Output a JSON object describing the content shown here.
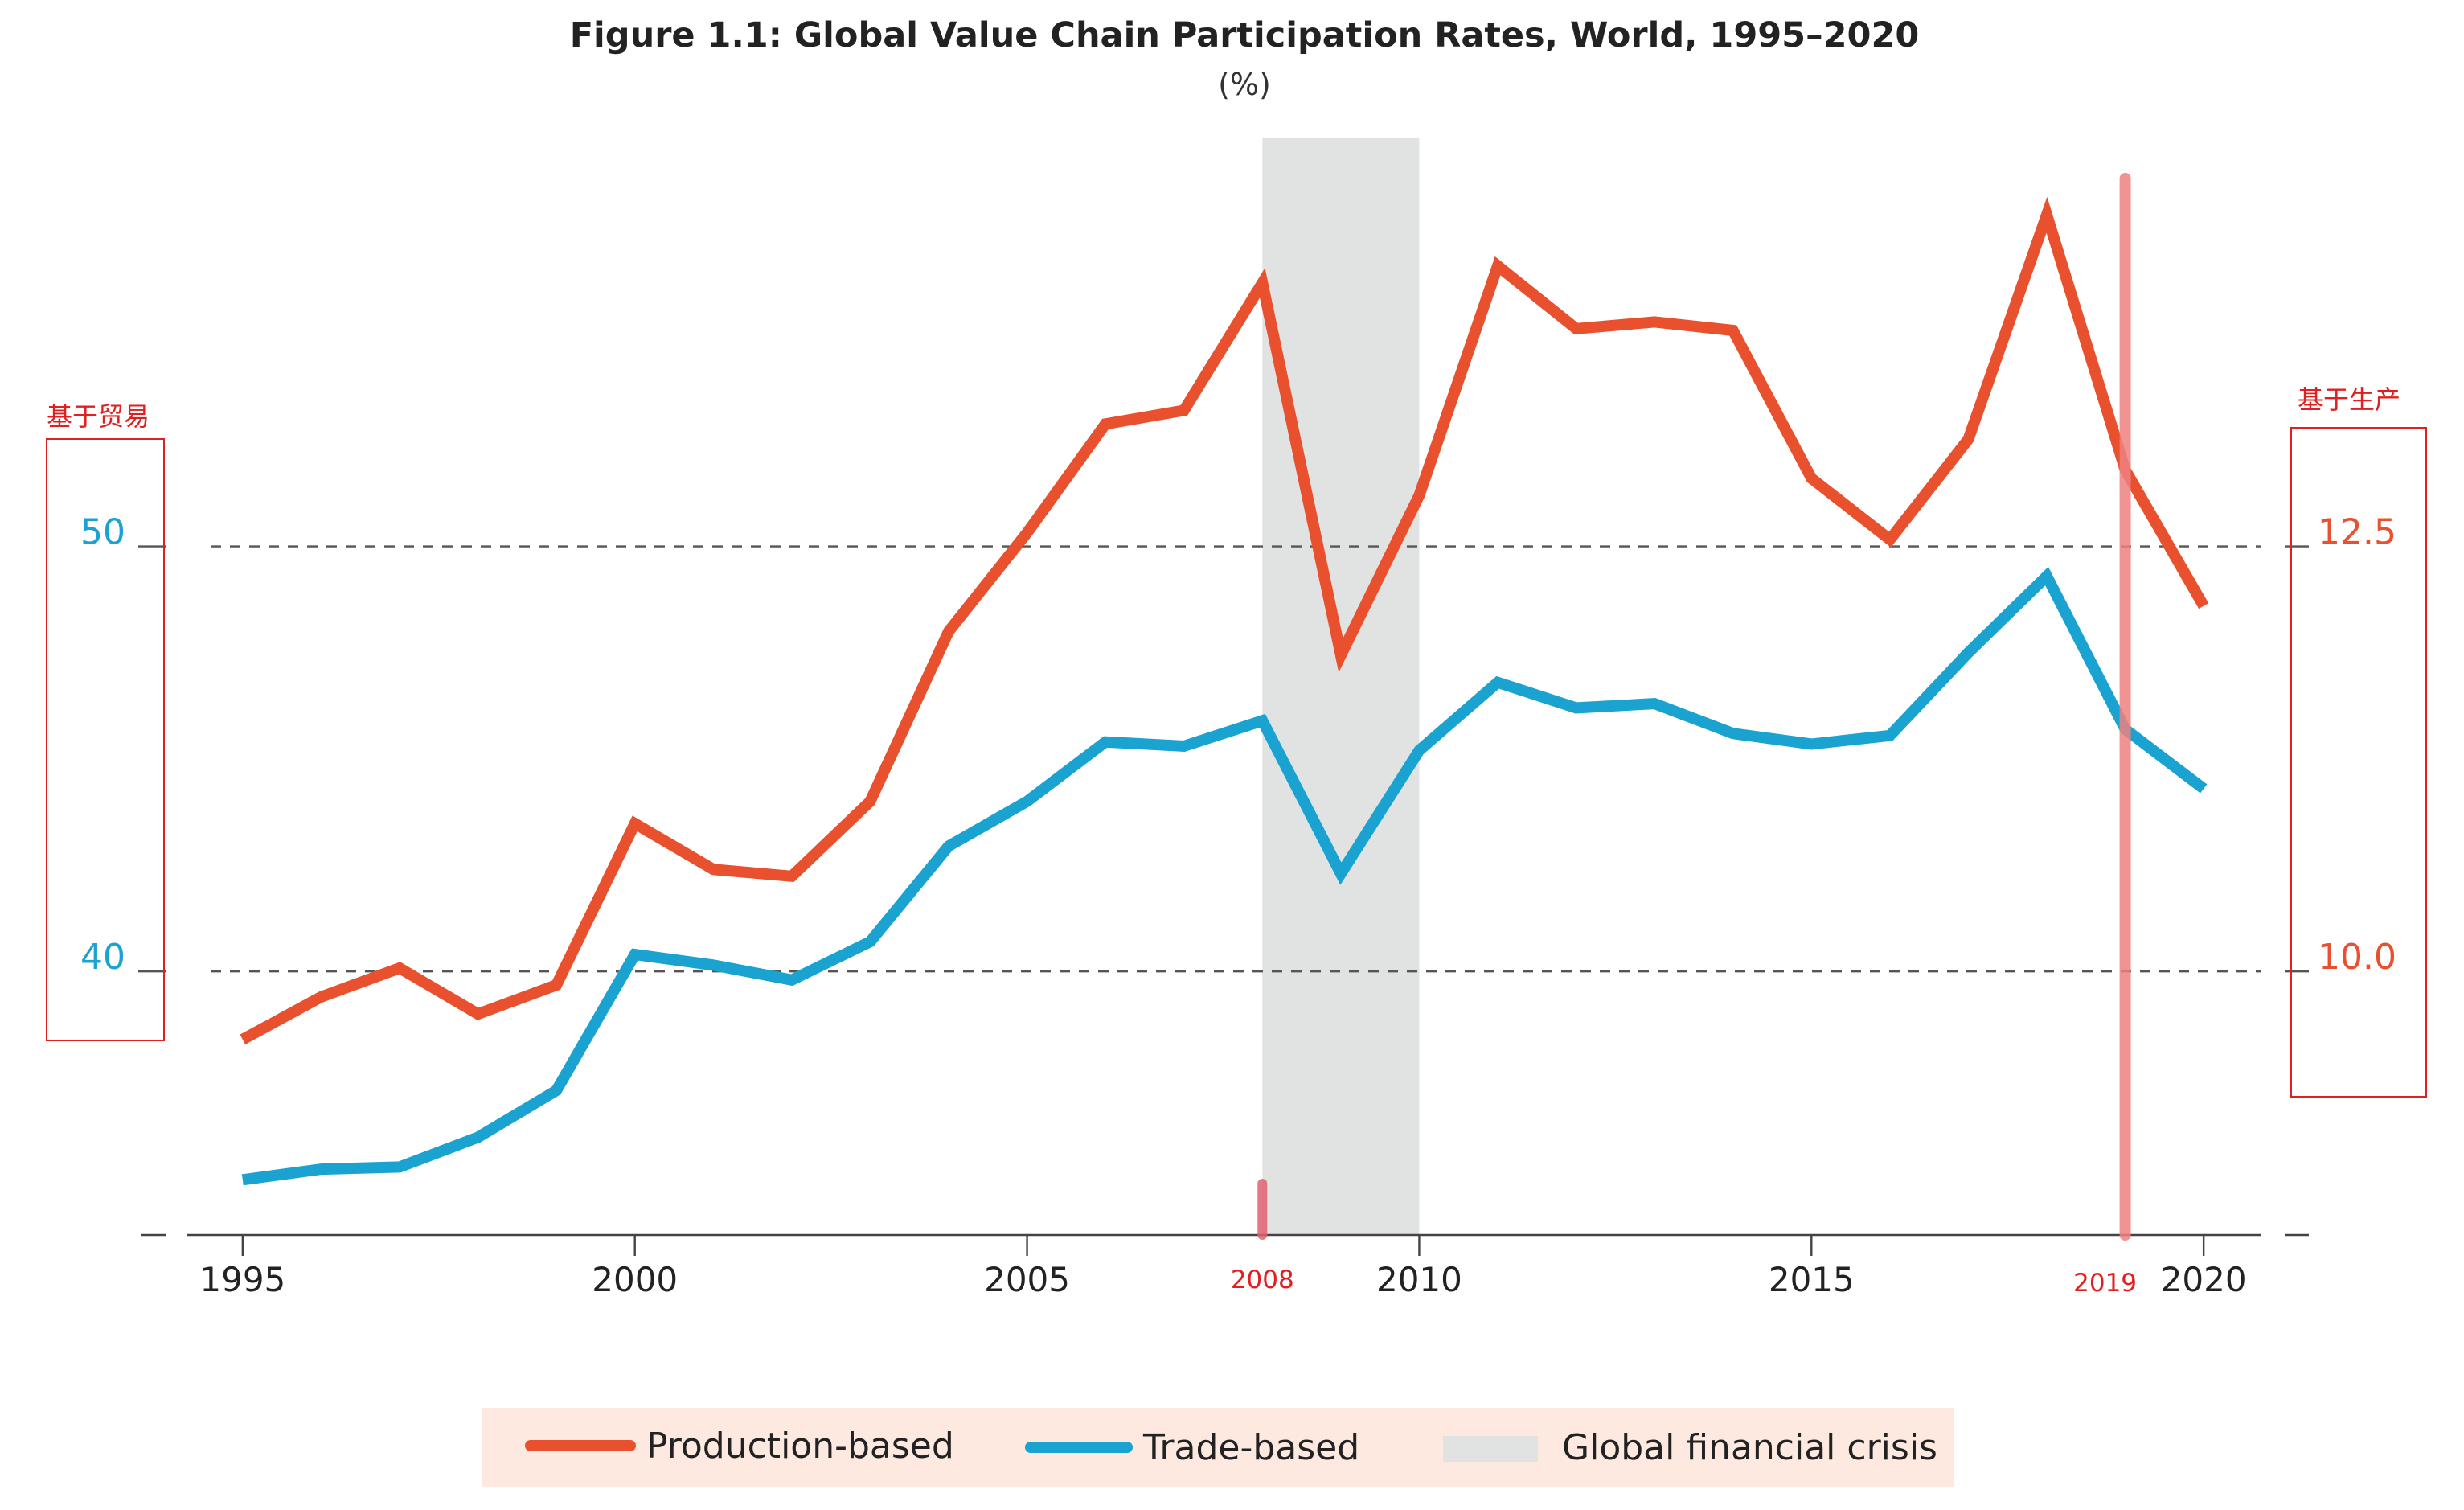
{
  "chart_data": {
    "type": "line",
    "title": "Figure 1.1: Global Value Chain Participation Rates, World, 1995–2020",
    "subtitle": "(%)",
    "x": [
      1995,
      1996,
      1997,
      1998,
      1999,
      2000,
      2001,
      2002,
      2003,
      2004,
      2005,
      2006,
      2007,
      2008,
      2009,
      2010,
      2011,
      2012,
      2013,
      2014,
      2015,
      2016,
      2017,
      2018,
      2019,
      2020
    ],
    "x_ticks": [
      "1995",
      "2000",
      "2005",
      "2010",
      "2015",
      "2020"
    ],
    "xlim": [
      1993.7,
      2021.3
    ],
    "left_axis": {
      "annotation": "基于贸易",
      "ticks": [
        "40",
        "50"
      ],
      "ylim": [
        33.8,
        59.6
      ]
    },
    "right_axis": {
      "annotation": "基于生产",
      "ticks": [
        "10.0",
        "12.5"
      ],
      "ylim": [
        8.45,
        14.9
      ]
    },
    "series": [
      {
        "name": "Production-based",
        "axis": "right",
        "color": "#e8502e",
        "values": [
          9.6,
          9.85,
          10.02,
          9.75,
          9.92,
          10.87,
          10.6,
          10.56,
          11.0,
          12.0,
          12.58,
          13.22,
          13.3,
          14.05,
          11.86,
          12.8,
          14.15,
          13.78,
          13.82,
          13.77,
          12.9,
          12.54,
          13.13,
          14.45,
          12.95,
          12.15
        ]
      },
      {
        "name": "Trade-based",
        "axis": "left",
        "color": "#1aa3d1",
        "values": [
          35.1,
          35.35,
          35.4,
          36.1,
          37.2,
          40.4,
          40.15,
          39.8,
          40.7,
          42.95,
          44.0,
          45.4,
          45.3,
          45.9,
          42.3,
          45.2,
          46.8,
          46.2,
          46.3,
          45.6,
          45.35,
          45.55,
          47.5,
          49.3,
          45.7,
          44.3
        ]
      }
    ],
    "shaded_period": {
      "name": "Global financial crisis",
      "from": 2008,
      "to": 2010,
      "color": "#e1e3e2"
    },
    "markers": [
      {
        "label": "2008",
        "x": 2008
      },
      {
        "label": "2019",
        "x": 2019
      }
    ],
    "grid": "dashed reference lines at 40 / 50 (left) and 10.0 / 12.5 (right)",
    "legend_position": "bottom-center",
    "legend_background": "#fde9e0"
  }
}
